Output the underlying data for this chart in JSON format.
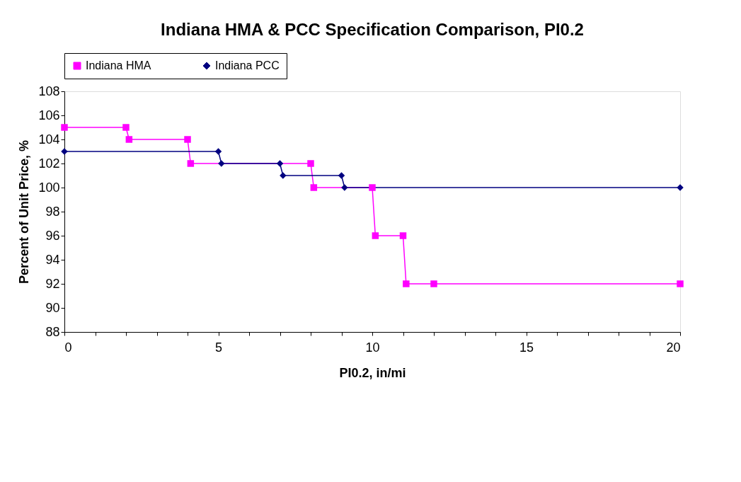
{
  "chart_data": {
    "type": "line",
    "title": "Indiana HMA & PCC Specification Comparison, PI0.2",
    "xlabel": "PI0.2, in/mi",
    "ylabel": "Percent of Unit Price, %",
    "series": [
      {
        "name": "Indiana HMA",
        "color": "#ff00ff",
        "marker": "square",
        "x": [
          0,
          2,
          2.1,
          4,
          4.1,
          8,
          8.1,
          10,
          10.1,
          11,
          11.1,
          12,
          20
        ],
        "values": [
          105,
          105,
          104,
          104,
          102,
          102,
          100,
          100,
          96,
          96,
          92,
          92,
          92
        ]
      },
      {
        "name": "Indiana PCC",
        "color": "#000080",
        "marker": "diamond",
        "x": [
          0,
          5,
          5.1,
          7,
          7.1,
          9,
          9.1,
          20
        ],
        "values": [
          103,
          103,
          102,
          102,
          101,
          101,
          100,
          100
        ]
      }
    ],
    "xlim": [
      0,
      20
    ],
    "ylim": [
      88,
      108
    ],
    "xticks": [
      0,
      {
        "value": 1,
        "label": null
      },
      {
        "value": 2,
        "label": null
      },
      {
        "value": 3,
        "label": null
      },
      {
        "value": 4,
        "label": null
      },
      5,
      {
        "value": 6,
        "label": null
      },
      {
        "value": 7,
        "label": null
      },
      {
        "value": 8,
        "label": null
      },
      {
        "value": 9,
        "label": null
      },
      10,
      {
        "value": 11,
        "label": null
      },
      {
        "value": 12,
        "label": null
      },
      {
        "value": 13,
        "label": null
      },
      {
        "value": 14,
        "label": null
      },
      15,
      {
        "value": 16,
        "label": null
      },
      {
        "value": 17,
        "label": null
      },
      {
        "value": 18,
        "label": null
      },
      {
        "value": 19,
        "label": null
      },
      20
    ],
    "yticks": [
      88,
      90,
      92,
      94,
      96,
      98,
      100,
      102,
      104,
      106,
      108
    ],
    "grid": false,
    "legend": "top",
    "line_style": "solid"
  }
}
